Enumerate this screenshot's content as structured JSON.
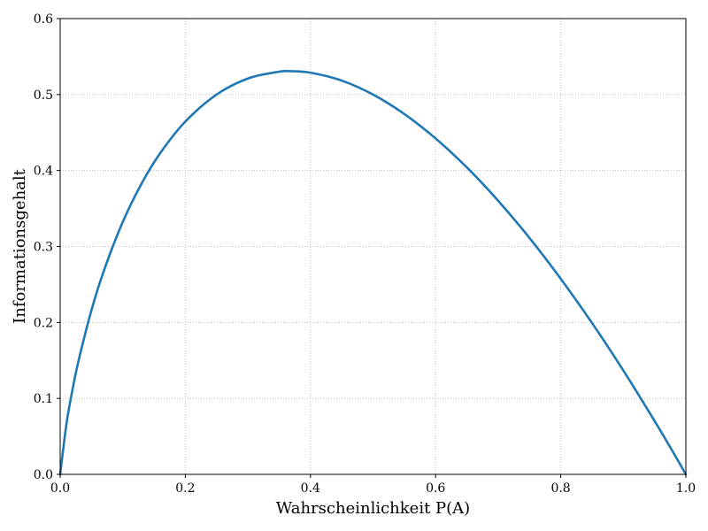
{
  "chart_data": {
    "type": "line",
    "xlabel": "Wahrscheinlichkeit P(A)",
    "ylabel": "Informationsgehalt",
    "xlim": [
      0.0,
      1.0
    ],
    "ylim": [
      0.0,
      0.6
    ],
    "x_ticks": [
      0.0,
      0.2,
      0.4,
      0.6,
      0.8,
      1.0
    ],
    "y_ticks": [
      0.0,
      0.1,
      0.2,
      0.3,
      0.4,
      0.5,
      0.6
    ],
    "x_tick_labels": [
      "0.0",
      "0.2",
      "0.4",
      "0.6",
      "0.8",
      "1.0"
    ],
    "y_tick_labels": [
      "0.0",
      "0.1",
      "0.2",
      "0.3",
      "0.4",
      "0.5",
      "0.6"
    ],
    "grid": true,
    "grid_style": "dotted",
    "series": [
      {
        "color": "#1f77b4",
        "x": [
          0.0,
          0.01,
          0.02,
          0.03,
          0.05,
          0.07,
          0.1,
          0.13,
          0.16,
          0.2,
          0.25,
          0.3,
          0.35,
          0.368,
          0.4,
          0.45,
          0.5,
          0.55,
          0.6,
          0.65,
          0.7,
          0.75,
          0.8,
          0.85,
          0.9,
          0.95,
          0.98,
          1.0
        ],
        "y": [
          0.0,
          0.0664,
          0.1129,
          0.1518,
          0.2161,
          0.2685,
          0.3322,
          0.3826,
          0.423,
          0.4644,
          0.5,
          0.5211,
          0.5301,
          0.5307,
          0.5288,
          0.5184,
          0.5,
          0.4744,
          0.4422,
          0.404,
          0.3602,
          0.3113,
          0.2575,
          0.1993,
          0.1368,
          0.0703,
          0.0286,
          0.0
        ]
      }
    ]
  }
}
